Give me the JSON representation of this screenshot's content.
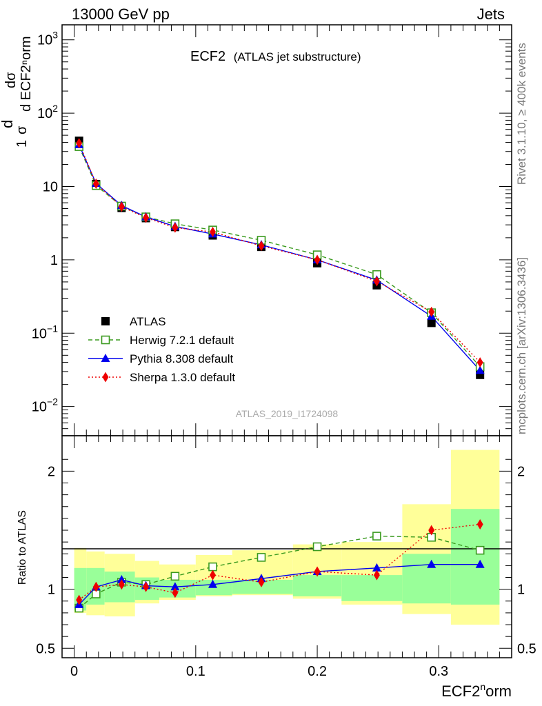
{
  "header": {
    "left": "13000 GeV pp",
    "right": "Jets"
  },
  "side_labels": {
    "rivet": "Rivet 3.1.10, ≥ 400k events",
    "mcplots": "mcplots.cern.ch [arXiv:1306.3436]"
  },
  "watermark": "ATLAS_2019_I1724098",
  "chart_data": {
    "type": "line",
    "title": "ECF2",
    "subtitle": "(ATLAS jet substructure)",
    "xlabel_main": "ECF2",
    "xlabel_sup": "n",
    "xlabel_tail": "orm",
    "ylabel": "1/σ dσ/d ECF2norm",
    "ratio_ylabel": "Ratio to ATLAS",
    "xlim": [
      -0.01,
      0.36
    ],
    "ylim_log": [
      0.004,
      1600
    ],
    "ratio_ylim": [
      0.42,
      2.3
    ],
    "x_ticks": [
      "0",
      "0.1",
      "0.2",
      "0.3"
    ],
    "x_tick_values": [
      0,
      0.1,
      0.2,
      0.3
    ],
    "y_ticks": [
      {
        "base": "10",
        "exp": "3",
        "value": 1000
      },
      {
        "base": "10",
        "exp": "2",
        "value": 100
      },
      {
        "base": "10",
        "exp": "",
        "value": 10
      },
      {
        "base": "1",
        "exp": "",
        "value": 1
      },
      {
        "base": "10",
        "exp": "−1",
        "value": 0.1
      },
      {
        "base": "10",
        "exp": "−2",
        "value": 0.01
      }
    ],
    "ratio_ticks": [
      {
        "label": "2",
        "value": 2
      },
      {
        "label": "1",
        "value": 1
      },
      {
        "label": "0.5",
        "value": 0.5
      }
    ],
    "grid": false,
    "legend_position": "lower-left",
    "bins": [
      [
        0.0,
        0.01
      ],
      [
        0.01,
        0.025
      ],
      [
        0.025,
        0.05
      ],
      [
        0.05,
        0.07
      ],
      [
        0.07,
        0.1
      ],
      [
        0.1,
        0.13
      ],
      [
        0.13,
        0.18
      ],
      [
        0.18,
        0.22
      ],
      [
        0.22,
        0.27
      ],
      [
        0.27,
        0.31
      ],
      [
        0.31,
        0.35
      ]
    ],
    "x": [
      0.004,
      0.018,
      0.039,
      0.059,
      0.083,
      0.114,
      0.154,
      0.2,
      0.249,
      0.294,
      0.334
    ],
    "data": {
      "name": "ATLAS",
      "color": "#000000",
      "values": [
        42,
        10.8,
        5.1,
        3.7,
        2.8,
        2.15,
        1.5,
        0.9,
        0.45,
        0.138,
        0.027
      ],
      "band_inner": [
        [
          0.82,
          1.18
        ],
        [
          0.87,
          1.18
        ],
        [
          0.89,
          1.15
        ],
        [
          0.91,
          1.1
        ],
        [
          0.93,
          1.08
        ],
        [
          0.95,
          1.08
        ],
        [
          0.96,
          1.08
        ],
        [
          0.94,
          1.12
        ],
        [
          0.9,
          1.12
        ],
        [
          0.88,
          1.3
        ],
        [
          0.87,
          1.68
        ]
      ],
      "band_outer": [
        [
          0.8,
          1.35
        ],
        [
          0.78,
          1.32
        ],
        [
          0.77,
          1.3
        ],
        [
          0.88,
          1.24
        ],
        [
          0.91,
          1.21
        ],
        [
          0.94,
          1.29
        ],
        [
          0.95,
          1.33
        ],
        [
          0.92,
          1.38
        ],
        [
          0.87,
          1.4
        ],
        [
          0.79,
          1.72
        ],
        [
          0.7,
          2.18
        ]
      ]
    },
    "series": [
      {
        "name": "Herwig 7.2.1 default",
        "color": "#3a9a1e",
        "dash": "dashed",
        "marker": "open-square",
        "values": [
          35,
          10.3,
          5.4,
          3.85,
          3.1,
          2.55,
          1.85,
          1.17,
          0.63,
          0.19,
          0.035
        ],
        "ratio": [
          0.84,
          0.96,
          1.06,
          1.04,
          1.11,
          1.19,
          1.27,
          1.36,
          1.45,
          1.44,
          1.33
        ]
      },
      {
        "name": "Pythia 8.308 default",
        "color": "#0000ee",
        "dash": "solid",
        "marker": "filled-triangle",
        "values": [
          37,
          11.0,
          5.5,
          3.85,
          2.85,
          2.25,
          1.6,
          1.0,
          0.53,
          0.17,
          0.031
        ],
        "ratio": [
          0.87,
          1.02,
          1.08,
          1.03,
          1.02,
          1.04,
          1.09,
          1.15,
          1.18,
          1.21,
          1.21
        ]
      },
      {
        "name": "Sherpa 1.3.0 default",
        "color": "#ee0000",
        "dash": "dotted",
        "marker": "filled-diamond",
        "values": [
          39,
          10.9,
          5.3,
          3.75,
          2.75,
          2.4,
          1.55,
          1.0,
          0.51,
          0.195,
          0.04
        ],
        "ratio": [
          0.91,
          1.02,
          1.04,
          1.02,
          0.97,
          1.12,
          1.06,
          1.15,
          1.12,
          1.5,
          1.55
        ]
      }
    ]
  }
}
